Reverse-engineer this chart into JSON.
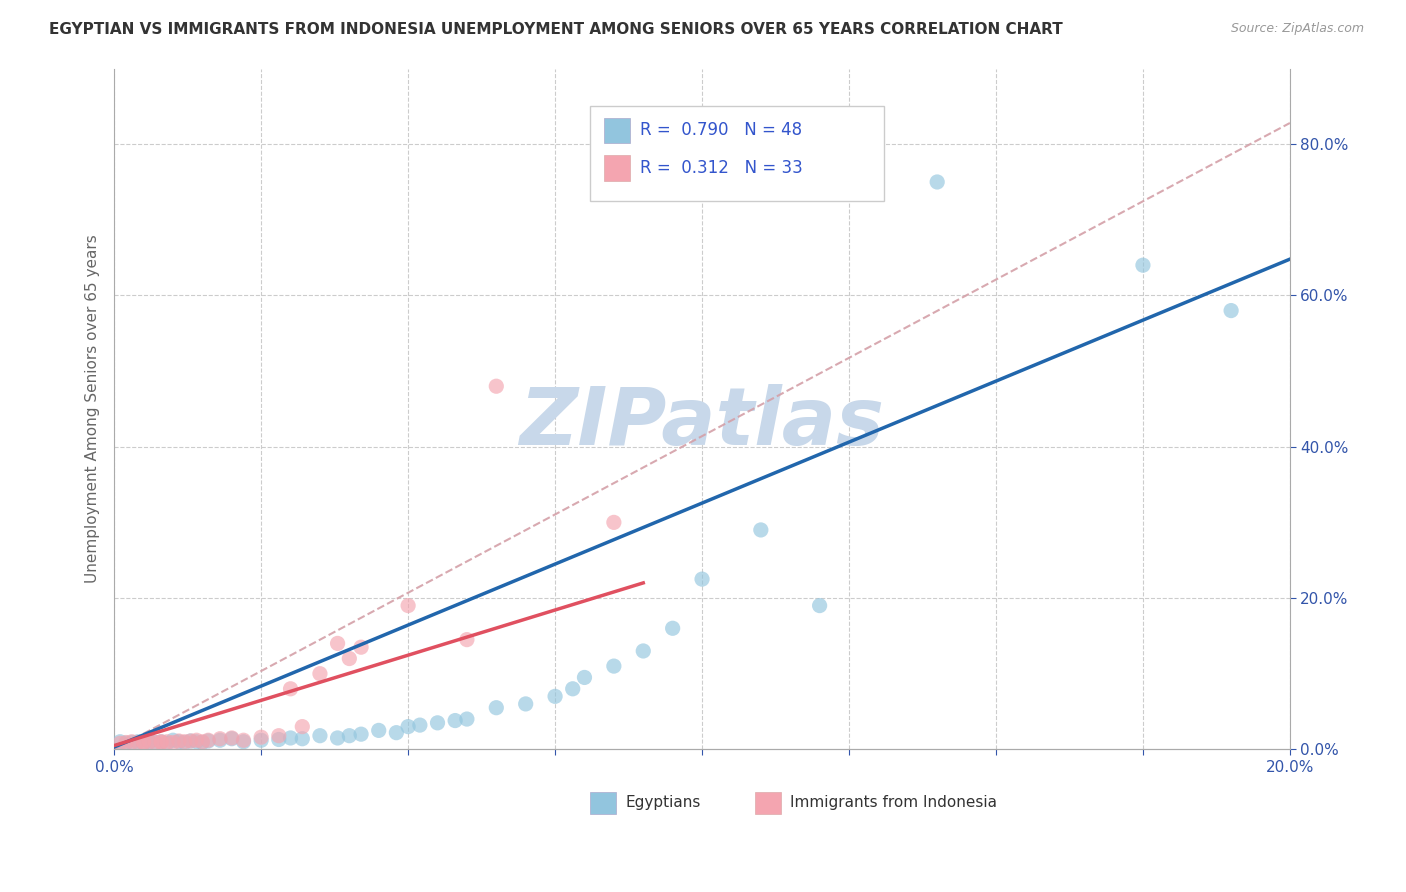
{
  "title": "EGYPTIAN VS IMMIGRANTS FROM INDONESIA UNEMPLOYMENT AMONG SENIORS OVER 65 YEARS CORRELATION CHART",
  "source": "Source: ZipAtlas.com",
  "ylabel": "Unemployment Among Seniors over 65 years",
  "x_min": 0.0,
  "x_max": 0.2,
  "y_min": 0.0,
  "y_max": 0.9,
  "x_ticks": [
    0.0,
    0.025,
    0.05,
    0.075,
    0.1,
    0.125,
    0.15,
    0.175,
    0.2
  ],
  "y_ticks_right": [
    0.0,
    0.2,
    0.4,
    0.6,
    0.8
  ],
  "y_tick_labels_right": [
    "0.0%",
    "20.0%",
    "40.0%",
    "60.0%",
    "80.0%"
  ],
  "blue_color": "#92c5de",
  "pink_color": "#f4a5b0",
  "blue_line_color": "#2166ac",
  "pink_line_color": "#e05060",
  "ref_line_color": "#d4a0a8",
  "watermark_text": "ZIPatlas",
  "watermark_color": "#c8d8ea",
  "legend_text1": "R =  0.790   N = 48",
  "legend_text2": "R =  0.312   N = 33",
  "blue_scatter_x": [
    0.001,
    0.002,
    0.003,
    0.004,
    0.005,
    0.006,
    0.007,
    0.008,
    0.009,
    0.01,
    0.011,
    0.012,
    0.013,
    0.014,
    0.015,
    0.016,
    0.018,
    0.02,
    0.022,
    0.025,
    0.028,
    0.03,
    0.032,
    0.035,
    0.038,
    0.04,
    0.042,
    0.045,
    0.048,
    0.05,
    0.052,
    0.055,
    0.058,
    0.06,
    0.065,
    0.07,
    0.075,
    0.078,
    0.08,
    0.085,
    0.09,
    0.095,
    0.1,
    0.11,
    0.12,
    0.14,
    0.175,
    0.19
  ],
  "blue_scatter_y": [
    0.01,
    0.008,
    0.009,
    0.01,
    0.008,
    0.01,
    0.009,
    0.01,
    0.008,
    0.012,
    0.01,
    0.009,
    0.011,
    0.01,
    0.009,
    0.011,
    0.012,
    0.014,
    0.01,
    0.012,
    0.013,
    0.015,
    0.014,
    0.018,
    0.015,
    0.018,
    0.02,
    0.025,
    0.022,
    0.03,
    0.032,
    0.035,
    0.038,
    0.04,
    0.055,
    0.06,
    0.07,
    0.08,
    0.095,
    0.11,
    0.13,
    0.16,
    0.225,
    0.29,
    0.19,
    0.75,
    0.64,
    0.58
  ],
  "pink_scatter_x": [
    0.001,
    0.002,
    0.003,
    0.004,
    0.005,
    0.005,
    0.006,
    0.007,
    0.008,
    0.008,
    0.009,
    0.01,
    0.011,
    0.012,
    0.013,
    0.014,
    0.015,
    0.016,
    0.018,
    0.02,
    0.022,
    0.025,
    0.028,
    0.03,
    0.032,
    0.035,
    0.038,
    0.04,
    0.042,
    0.05,
    0.06,
    0.065,
    0.085
  ],
  "pink_scatter_y": [
    0.008,
    0.009,
    0.01,
    0.009,
    0.009,
    0.01,
    0.01,
    0.009,
    0.009,
    0.01,
    0.01,
    0.009,
    0.011,
    0.01,
    0.011,
    0.012,
    0.01,
    0.012,
    0.014,
    0.015,
    0.012,
    0.016,
    0.018,
    0.08,
    0.03,
    0.1,
    0.14,
    0.12,
    0.135,
    0.19,
    0.145,
    0.48,
    0.3
  ]
}
